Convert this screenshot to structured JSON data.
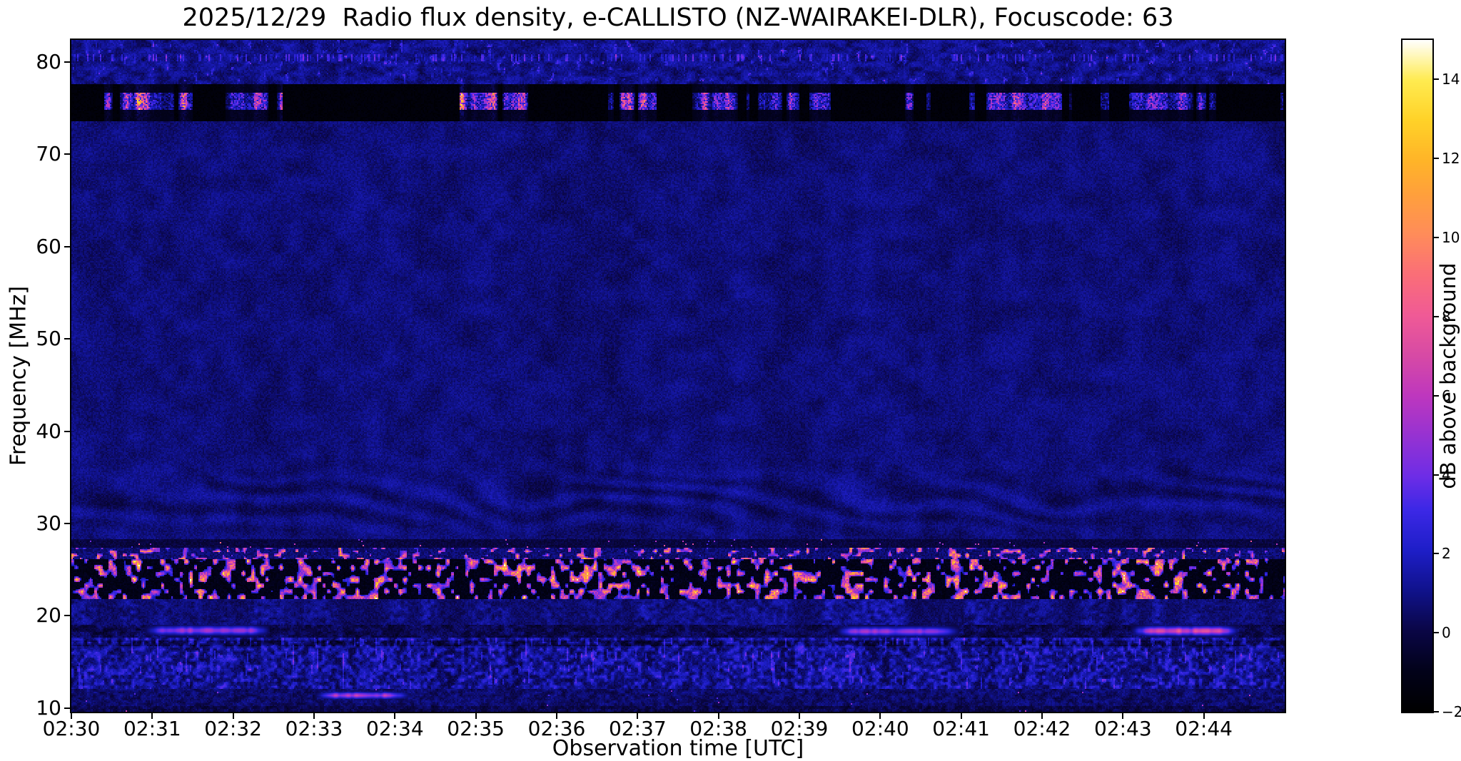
{
  "chart_data": {
    "type": "heatmap",
    "title": "2025/12/29  Radio flux density, e-CALLISTO (NZ-WAIRAKEI-DLR), Focuscode: 63",
    "xlabel": "Observation time [UTC]",
    "ylabel": "Frequency [MHz]",
    "colorbar_label": "dB above background",
    "x_ticks": [
      "02:30",
      "02:31",
      "02:32",
      "02:33",
      "02:34",
      "02:35",
      "02:36",
      "02:37",
      "02:38",
      "02:39",
      "02:40",
      "02:41",
      "02:42",
      "02:43",
      "02:44"
    ],
    "x_range_minutes": [
      0,
      15
    ],
    "y_ticks": [
      80,
      70,
      60,
      50,
      40,
      30,
      20,
      10
    ],
    "y_range_mhz": [
      9.6,
      82.4
    ],
    "value_range_db": [
      -2,
      15
    ],
    "colorbar_ticks": [
      14,
      12,
      10,
      8,
      6,
      4,
      2,
      0,
      -2
    ],
    "grid": false,
    "legend": "colorbar-right",
    "background_db": 0.8,
    "colormap": [
      {
        "t": 0.0,
        "color": "#000000"
      },
      {
        "t": 0.06,
        "color": "#02021a"
      },
      {
        "t": 0.12,
        "color": "#0a0646"
      },
      {
        "t": 0.18,
        "color": "#10128c"
      },
      {
        "t": 0.24,
        "color": "#1e1ec8"
      },
      {
        "t": 0.3,
        "color": "#3c28e6"
      },
      {
        "t": 0.35,
        "color": "#6e2de6"
      },
      {
        "t": 0.41,
        "color": "#9632d2"
      },
      {
        "t": 0.47,
        "color": "#be37be"
      },
      {
        "t": 0.53,
        "color": "#d74aa5"
      },
      {
        "t": 0.59,
        "color": "#f05a96"
      },
      {
        "t": 0.65,
        "color": "#fa6e78"
      },
      {
        "t": 0.71,
        "color": "#ff8c5a"
      },
      {
        "t": 0.77,
        "color": "#ffa03c"
      },
      {
        "t": 0.82,
        "color": "#ffb428"
      },
      {
        "t": 0.88,
        "color": "#ffd228"
      },
      {
        "t": 0.94,
        "color": "#ffeb50"
      },
      {
        "t": 1.0,
        "color": "#ffffff"
      }
    ],
    "features": [
      {
        "name": "rfi-band-75mhz",
        "f_min": 73.7,
        "f_max": 77.6,
        "bright_min": 74.9,
        "bright_max": 76.7,
        "base_db": -1.85,
        "peak_db": 15,
        "quiet_gaps": [
          [
            2.6,
            4.8
          ]
        ],
        "description": "black RFI lane with intermittent saturated white/orange burst columns"
      },
      {
        "name": "top-speckle-band",
        "f_min": 77.6,
        "f_max": 82.4,
        "description": "noisy blue band with bright speckles, speckle row near 80.5 MHz"
      },
      {
        "name": "interference-ripples",
        "f_center": 32.5,
        "f_sigma": 3.2,
        "amp_db": 0.5,
        "description": "faint wavy interference fringes around 29-37 MHz"
      },
      {
        "name": "dark-stripe-27mhz",
        "f_min": 27.3,
        "f_max": 28.2
      },
      {
        "name": "speckle-band-26mhz",
        "f_min": 26.1,
        "f_max": 27.3,
        "description": "sparse hot pink/orange dots on dark blue"
      },
      {
        "name": "black-burst-band",
        "f_min": 21.7,
        "f_max": 26.1,
        "base_db": -1.5,
        "peak_db": 15,
        "description": "black band peppered with bright orange/white blobs"
      },
      {
        "name": "noise-band-20mhz",
        "f_min": 19.0,
        "f_max": 21.7
      },
      {
        "name": "streak-band-18mhz",
        "f_min": 17.6,
        "f_max": 19.0,
        "streaks": [
          {
            "t_range": [
              1.0,
              2.35
            ],
            "f_center": 18.35,
            "f_sigma": 0.4,
            "peak_db": 6.5
          },
          {
            "t_range": [
              9.55,
              10.9
            ],
            "f_center": 18.25,
            "f_sigma": 0.4,
            "peak_db": 6.0
          },
          {
            "t_range": [
              13.2,
              14.35
            ],
            "f_center": 18.3,
            "f_sigma": 0.4,
            "peak_db": 8.5
          }
        ]
      },
      {
        "name": "noise-band-low",
        "f_min": 12.0,
        "f_max": 17.6,
        "description": "dense blue/purple noise with vertical streaking"
      },
      {
        "name": "bottom-band",
        "f_min": 9.6,
        "f_max": 12.0,
        "streaks": [
          {
            "t_range": [
              3.1,
              4.1
            ],
            "f_center": 11.3,
            "f_sigma": 0.3,
            "peak_db": 7.0
          }
        ]
      }
    ]
  }
}
